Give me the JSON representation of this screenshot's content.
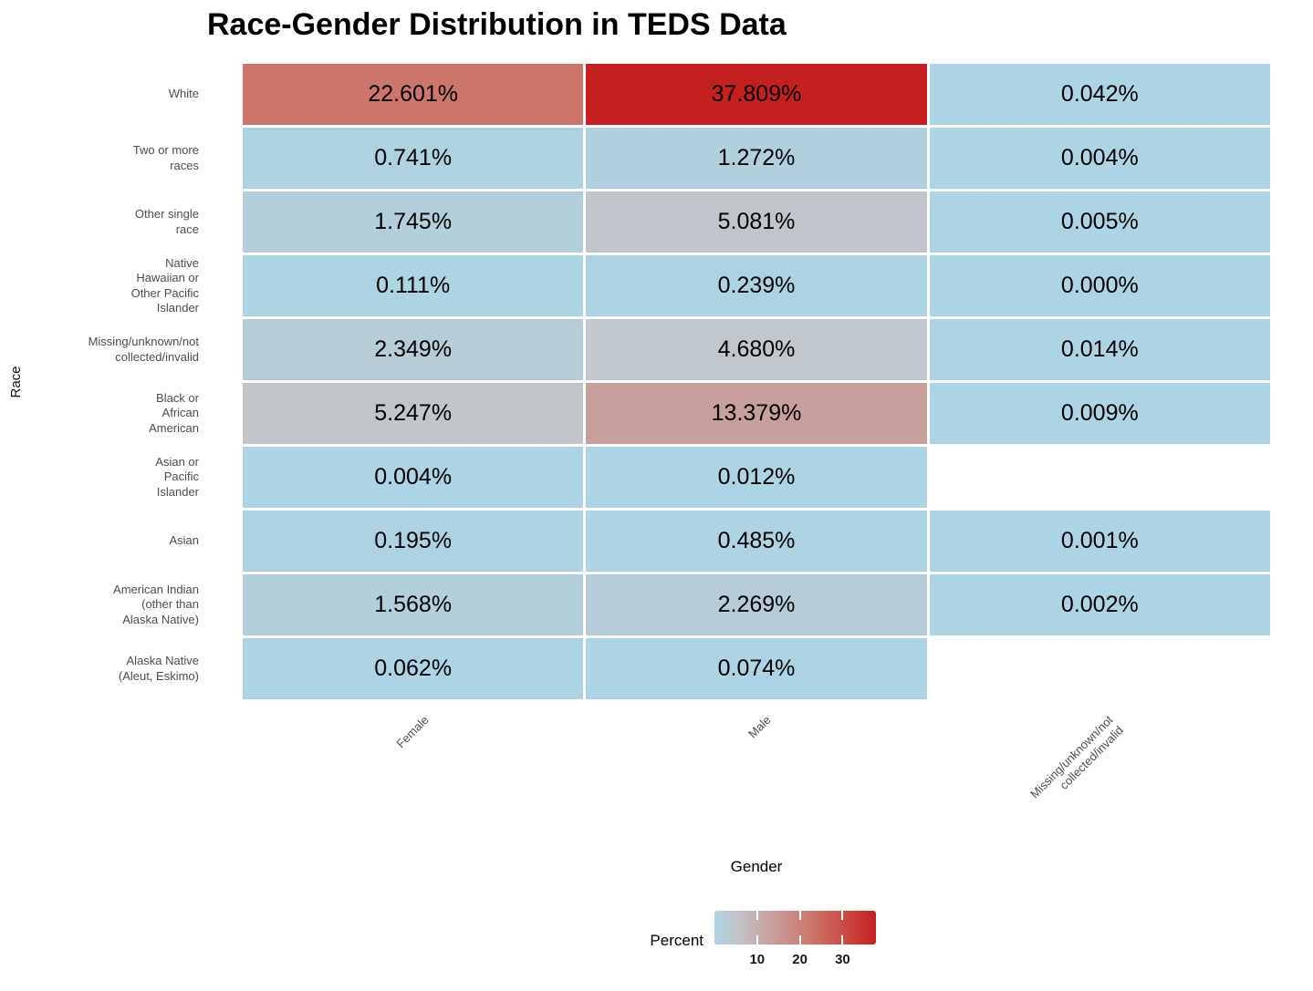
{
  "title": "Race-Gender Distribution in TEDS Data",
  "axes": {
    "x_title": "Gender",
    "y_title": "Race"
  },
  "legend": {
    "title": "Percent",
    "tick_labels": [
      "10",
      "20",
      "30"
    ],
    "tick_values": [
      10,
      20,
      30
    ],
    "domain_min": 0,
    "domain_max": 37.809
  },
  "colors": {
    "scale_stops": [
      {
        "value": 0,
        "color": "#acd4e4"
      },
      {
        "value": 5.2,
        "color": "#c2c5ca"
      },
      {
        "value": 22.6,
        "color": "#cd776c"
      },
      {
        "value": 37.809,
        "color": "#c52020"
      }
    ],
    "na_cell": "#ffffff",
    "axis_text": "#4d4d4d",
    "cell_text": "#000000",
    "title_text": "#000000"
  },
  "chart_data": {
    "type": "heatmap",
    "x_categories": [
      "Female",
      "Male",
      "Missing/unknown/not collected/invalid"
    ],
    "x_categories_lines": [
      [
        "Female"
      ],
      [
        "Male"
      ],
      [
        "Missing/unknown/not",
        "collected/invalid"
      ]
    ],
    "y_categories": [
      "White",
      "Two or more races",
      "Other single race",
      "Native Hawaiian or Other Pacific Islander",
      "Missing/unknown/not collected/invalid",
      "Black or African American",
      "Asian or Pacific Islander",
      "Asian",
      "American Indian (other than Alaska Native)",
      "Alaska Native (Aleut, Eskimo)"
    ],
    "y_categories_lines": [
      [
        "White"
      ],
      [
        "Two or more",
        "races"
      ],
      [
        "Other single",
        "race"
      ],
      [
        "Native",
        "Hawaiian or",
        "Other Pacific",
        "Islander"
      ],
      [
        "Missing/unknown/not",
        "collected/invalid"
      ],
      [
        "Black or",
        "African",
        "American"
      ],
      [
        "Asian or",
        "Pacific",
        "Islander"
      ],
      [
        "Asian"
      ],
      [
        "American Indian",
        "(other than",
        "Alaska Native)"
      ],
      [
        "Alaska Native",
        "(Aleut, Eskimo)"
      ]
    ],
    "rows": [
      {
        "race": "White",
        "values": [
          22.601,
          37.809,
          0.042
        ],
        "labels": [
          "22.601%",
          "37.809%",
          "0.042%"
        ]
      },
      {
        "race": "Two or more races",
        "values": [
          0.741,
          1.272,
          0.004
        ],
        "labels": [
          "0.741%",
          "1.272%",
          "0.004%"
        ]
      },
      {
        "race": "Other single race",
        "values": [
          1.745,
          5.081,
          0.005
        ],
        "labels": [
          "1.745%",
          "5.081%",
          "0.005%"
        ]
      },
      {
        "race": "Native Hawaiian or Other Pacific Islander",
        "values": [
          0.111,
          0.239,
          0.0
        ],
        "labels": [
          "0.111%",
          "0.239%",
          "0.000%"
        ]
      },
      {
        "race": "Missing/unknown/not collected/invalid",
        "values": [
          2.349,
          4.68,
          0.014
        ],
        "labels": [
          "2.349%",
          "4.680%",
          "0.014%"
        ]
      },
      {
        "race": "Black or African American",
        "values": [
          5.247,
          13.379,
          0.009
        ],
        "labels": [
          "5.247%",
          "13.379%",
          "0.009%"
        ]
      },
      {
        "race": "Asian or Pacific Islander",
        "values": [
          0.004,
          0.012,
          null
        ],
        "labels": [
          "0.004%",
          "0.012%",
          ""
        ]
      },
      {
        "race": "Asian",
        "values": [
          0.195,
          0.485,
          0.001
        ],
        "labels": [
          "0.195%",
          "0.485%",
          "0.001%"
        ]
      },
      {
        "race": "American Indian (other than Alaska Native)",
        "values": [
          1.568,
          2.269,
          0.002
        ],
        "labels": [
          "1.568%",
          "2.269%",
          "0.002%"
        ]
      },
      {
        "race": "Alaska Native (Aleut, Eskimo)",
        "values": [
          0.062,
          0.074,
          null
        ],
        "labels": [
          "0.062%",
          "0.074%",
          ""
        ]
      }
    ]
  }
}
